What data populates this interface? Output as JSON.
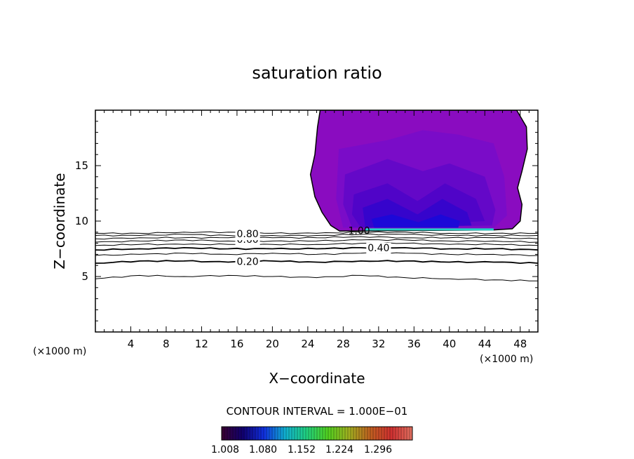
{
  "chart_data": {
    "type": "contour",
    "title": "saturation ratio",
    "xlabel": "X−coordinate",
    "ylabel": "Z−coordinate",
    "x_unit": "(×1000 m)",
    "x_unit_right": "(×1000 m)",
    "xlim": [
      0,
      50
    ],
    "ylim": [
      0,
      20
    ],
    "x_ticks": [
      4,
      8,
      12,
      16,
      20,
      24,
      28,
      32,
      36,
      40,
      44,
      48
    ],
    "y_ticks": [
      5,
      10,
      15
    ],
    "grid": false,
    "contour_interval_text": "CONTOUR INTERVAL = 1.000E−01",
    "contour_lines": [
      {
        "level": 0.1,
        "z": [
          4.8,
          5.1,
          5.0,
          5.1,
          5.0,
          4.9,
          5.1,
          4.9,
          4.8,
          4.7,
          4.6
        ]
      },
      {
        "level": 0.2,
        "z": [
          6.2,
          6.4,
          6.4,
          6.3,
          6.4,
          6.3,
          6.4,
          6.4,
          6.3,
          6.3,
          6.2
        ]
      },
      {
        "level": 0.3,
        "z": [
          6.9,
          7.0,
          7.1,
          7.0,
          7.1,
          7.0,
          7.1,
          7.1,
          7.0,
          7.0,
          6.9
        ]
      },
      {
        "level": 0.4,
        "z": [
          7.4,
          7.5,
          7.6,
          7.5,
          7.5,
          7.5,
          7.6,
          7.6,
          7.5,
          7.5,
          7.4
        ]
      },
      {
        "level": 0.5,
        "z": [
          7.8,
          7.9,
          7.9,
          7.9,
          7.9,
          7.9,
          8.0,
          8.0,
          7.9,
          7.9,
          7.8
        ]
      },
      {
        "level": 0.6,
        "z": [
          8.1,
          8.2,
          8.3,
          8.2,
          8.2,
          8.2,
          8.3,
          8.3,
          8.2,
          8.2,
          8.1
        ]
      },
      {
        "level": 0.7,
        "z": [
          8.4,
          8.5,
          8.5,
          8.5,
          8.5,
          8.5,
          8.6,
          8.5,
          8.5,
          8.5,
          8.4
        ]
      },
      {
        "level": 0.8,
        "z": [
          8.7,
          8.7,
          8.8,
          8.7,
          8.7,
          8.7,
          8.8,
          8.8,
          8.7,
          8.7,
          8.7
        ]
      },
      {
        "level": 0.9,
        "z": [
          8.9,
          8.9,
          9.0,
          9.0,
          8.9,
          8.9,
          9.0,
          9.0,
          8.9,
          8.9,
          8.9
        ]
      }
    ],
    "contour_line_x": [
      0,
      5,
      10,
      15,
      20,
      25,
      30,
      35,
      40,
      45,
      50
    ],
    "contour_labels": [
      {
        "text": "0.20",
        "x": 17.2,
        "z": 6.35
      },
      {
        "text": "0.40",
        "x": 32.0,
        "z": 7.6
      },
      {
        "text": "0.60",
        "x": 17.2,
        "z": 8.35
      },
      {
        "text": "0.80",
        "x": 17.2,
        "z": 8.85
      },
      {
        "text": "1.00",
        "x": 29.8,
        "z": 9.15
      }
    ],
    "cloud_region": {
      "outline": [
        [
          25.4,
          20
        ],
        [
          25.1,
          18.5
        ],
        [
          24.8,
          16.0
        ],
        [
          24.3,
          14.2
        ],
        [
          24.8,
          12.2
        ],
        [
          25.6,
          10.8
        ],
        [
          26.6,
          9.6
        ],
        [
          27.6,
          9.1
        ],
        [
          45.0,
          9.2
        ],
        [
          47.1,
          9.3
        ],
        [
          48.0,
          10.0
        ],
        [
          48.2,
          11.5
        ],
        [
          47.7,
          13.0
        ],
        [
          48.2,
          14.5
        ],
        [
          48.8,
          16.5
        ],
        [
          48.7,
          18.5
        ],
        [
          47.6,
          20
        ]
      ],
      "levels": [
        1.008,
        1.08,
        1.152,
        1.224,
        1.296
      ]
    },
    "colorbar": {
      "labels": [
        "1.008",
        "1.080",
        "1.152",
        "1.224",
        "1.296"
      ],
      "colors": [
        "#3a0030",
        "#100070",
        "#1030e0",
        "#10b0d0",
        "#20d080",
        "#50d020",
        "#a0b020",
        "#c06020",
        "#d03030",
        "#e07060"
      ]
    }
  }
}
